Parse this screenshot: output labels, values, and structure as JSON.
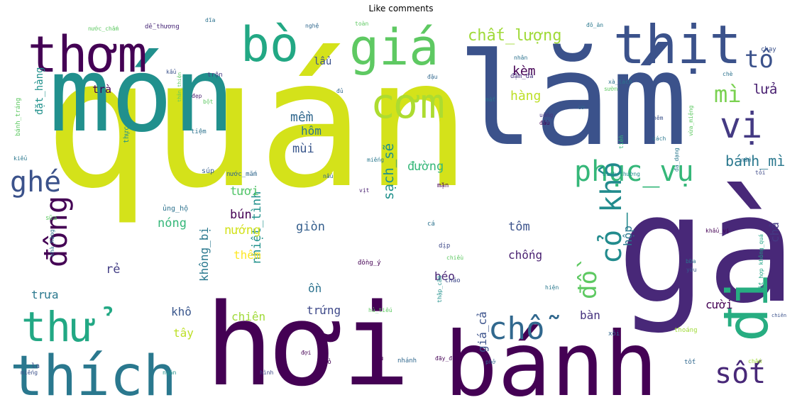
{
  "title": "Like comments",
  "words": [
    {
      "text": "quán",
      "color": "#d4e21a"
    },
    {
      "text": "món",
      "color": "#21908d"
    },
    {
      "text": "lắm",
      "color": "#3b528b"
    },
    {
      "text": "gà",
      "color": "#482878"
    },
    {
      "text": "hơi",
      "color": "#440154"
    },
    {
      "text": "bánh",
      "color": "#440154"
    },
    {
      "text": "thích",
      "color": "#2a788e"
    },
    {
      "text": "thịt",
      "color": "#3b528b"
    },
    {
      "text": "giá",
      "color": "#5ec962"
    },
    {
      "text": "thơm",
      "color": "#440154"
    },
    {
      "text": "bò",
      "color": "#22a884"
    },
    {
      "text": "cơm",
      "color": "#addc30"
    },
    {
      "text": "thử",
      "color": "#22a884"
    },
    {
      "text": "đi",
      "color": "#27ad81"
    },
    {
      "text": "chỗ",
      "color": "#31688e"
    },
    {
      "text": "phục_vụ",
      "color": "#35b779"
    },
    {
      "text": "vị",
      "color": "#443a83"
    },
    {
      "text": "cỏ_khô",
      "color": "#228b8d"
    },
    {
      "text": "đông",
      "color": "#440154"
    },
    {
      "text": "ghé",
      "color": "#3b528b"
    },
    {
      "text": "sốt",
      "color": "#482878"
    },
    {
      "text": "tô",
      "color": "#3b528b"
    },
    {
      "text": "mì",
      "color": "#7ad151"
    },
    {
      "text": "đồ",
      "color": "#5ec962"
    },
    {
      "text": "chất_lượng",
      "color": "#a0da39"
    },
    {
      "text": "sạch_sẽ",
      "color": "#21918c"
    },
    {
      "text": "bánh_mì",
      "color": "#2a788e"
    },
    {
      "text": "lửa",
      "color": "#481f70"
    },
    {
      "text": "kèm",
      "color": "#440154"
    },
    {
      "text": "hàng",
      "color": "#bddf26"
    },
    {
      "text": "nhiệt_tình",
      "color": "#21918c"
    },
    {
      "text": "mềm",
      "color": "#31688e"
    },
    {
      "text": "đường",
      "color": "#35b779"
    },
    {
      "text": "mùi",
      "color": "#39568c"
    },
    {
      "text": "hôm",
      "color": "#2c728e"
    },
    {
      "text": "bún",
      "color": "#440154"
    },
    {
      "text": "tươi",
      "color": "#52c569"
    },
    {
      "text": "nướng",
      "color": "#d2e21b"
    },
    {
      "text": "giòn",
      "color": "#355f8d"
    },
    {
      "text": "nóng",
      "color": "#35b779"
    },
    {
      "text": "không_bị",
      "color": "#2a788e"
    },
    {
      "text": "chống",
      "color": "#481f70"
    },
    {
      "text": "tôm",
      "color": "#3b528b"
    },
    {
      "text": "hộp",
      "color": "#2a788e"
    },
    {
      "text": "thêm",
      "color": "#fde725"
    },
    {
      "text": "rẻ",
      "color": "#433e85"
    },
    {
      "text": "béo",
      "color": "#482475"
    },
    {
      "text": "ồn",
      "color": "#2c728e"
    },
    {
      "text": "trưa",
      "color": "#2a788e"
    },
    {
      "text": "khô",
      "color": "#39568c"
    },
    {
      "text": "chiên",
      "color": "#a0da39"
    },
    {
      "text": "trứng",
      "color": "#3e4989"
    },
    {
      "text": "giá_cả",
      "color": "#3b528b"
    },
    {
      "text": "tây",
      "color": "#bddf26"
    },
    {
      "text": "bàn",
      "color": "#46337e"
    },
    {
      "text": "cười",
      "color": "#440154"
    },
    {
      "text": "chả",
      "color": "#443983"
    },
    {
      "text": "đặt_hàng",
      "color": "#21918c"
    },
    {
      "text": "lẩu",
      "color": "#3b528b"
    },
    {
      "text": "trà",
      "color": "#440154"
    },
    {
      "text": "thực_đơn",
      "color": "#21918c"
    },
    {
      "text": "ủng_hộ",
      "color": "#2c728e"
    },
    {
      "text": "súp",
      "color": "#355f8d"
    },
    {
      "text": "nước_mắm",
      "color": "#31688e"
    },
    {
      "text": "đậm_đà",
      "color": "#46337e"
    },
    {
      "text": "dễ_thương",
      "color": "#482878"
    },
    {
      "text": "nước_chấm",
      "color": "#5ec962"
    },
    {
      "text": "đô_ăn",
      "color": "#2a788e"
    },
    {
      "text": "chạy",
      "color": "#3b528b"
    },
    {
      "text": "trộn",
      "color": "#443983"
    },
    {
      "text": "kết_hợp không_quá",
      "color": "#20a486"
    },
    {
      "text": "hiện",
      "color": "#2a788e"
    },
    {
      "text": "yêu",
      "color": "#38588c"
    },
    {
      "text": "cá",
      "color": "#2c728e"
    },
    {
      "text": "tiệm",
      "color": "#2c728e"
    },
    {
      "text": "chấm",
      "color": "#a0da39"
    },
    {
      "text": "phở",
      "color": "#31688e"
    },
    {
      "text": "chủ",
      "color": "#440154"
    },
    {
      "text": "vỏ",
      "color": "#440154"
    },
    {
      "text": "nhánh",
      "color": "#31688e"
    },
    {
      "text": "ngán",
      "color": "#21918c"
    },
    {
      "text": "tốt",
      "color": "#31688e"
    },
    {
      "text": "hình",
      "color": "#3e4989"
    },
    {
      "text": "đợi",
      "color": "#440154"
    },
    {
      "text": "thoáng",
      "color": "#a0da39"
    },
    {
      "text": "xôi",
      "color": "#31688e"
    },
    {
      "text": "bánh_tráng",
      "color": "#5ec962"
    },
    {
      "text": "kiểu",
      "color": "#2a788e"
    },
    {
      "text": "sữa",
      "color": "#5ec962"
    },
    {
      "text": "nhà_hàng",
      "color": "#2c728e"
    },
    {
      "text": "nấm",
      "color": "#2c728e"
    },
    {
      "text": "tỏi",
      "color": "#3e4989"
    },
    {
      "text": "đủ",
      "color": "#31688e"
    },
    {
      "text": "đầu",
      "color": "#440154"
    },
    {
      "text": "mặn",
      "color": "#440154"
    },
    {
      "text": "cơ",
      "color": "#31688e"
    },
    {
      "text": "vịt",
      "color": "#481f70"
    },
    {
      "text": "tiền",
      "color": "#35b779"
    },
    {
      "text": "cách",
      "color": "#2a788e"
    },
    {
      "text": "bột",
      "color": "#5ec962"
    },
    {
      "text": "đẹp",
      "color": "#481f70"
    },
    {
      "text": "đa_dạng",
      "color": "#2a788e"
    },
    {
      "text": "vừa_miệng",
      "color": "#5ec962"
    },
    {
      "text": "bình_thường",
      "color": "#21918c"
    },
    {
      "text": "nghệ",
      "color": "#31688e"
    },
    {
      "text": "miếng",
      "color": "#2a788e"
    },
    {
      "text": "đồng_ý",
      "color": "#440154"
    },
    {
      "text": "cháo",
      "color": "#3e4989"
    },
    {
      "text": "chiều",
      "color": "#5ec962"
    },
    {
      "text": "dịp",
      "color": "#3e4989"
    },
    {
      "text": "khẩu_vị",
      "color": "#440154"
    },
    {
      "text": "hủ_tiếu",
      "color": "#5ec962"
    },
    {
      "text": "thập_cẩm",
      "color": "#21918c"
    },
    {
      "text": "xà_lách",
      "color": "#2c728e"
    },
    {
      "text": "sườn",
      "color": "#5ec962"
    },
    {
      "text": "đậu",
      "color": "#31688e"
    },
    {
      "text": "toàn",
      "color": "#5ec962"
    },
    {
      "text": "đãy_đủ",
      "color": "#440154"
    },
    {
      "text": "chè",
      "color": "#2c728e"
    },
    {
      "text": "nhân",
      "color": "#2c728e"
    },
    {
      "text": "cực",
      "color": "#440154"
    },
    {
      "text": "kẩu",
      "color": "#3b528b"
    },
    {
      "text": "bữa",
      "color": "#2c728e"
    },
    {
      "text": "mắt",
      "color": "#2c728e"
    },
    {
      "text": "nấu",
      "color": "#31688e"
    },
    {
      "text": "uống",
      "color": "#46337e"
    },
    {
      "text": "thân_thiện",
      "color": "#5ec962"
    },
    {
      "text": "chiên",
      "color": "#3b528b"
    },
    {
      "text": "la",
      "color": "#3b528b"
    },
    {
      "text": "miếng",
      "color": "#3b528b"
    },
    {
      "text": "nêm",
      "color": "#3b528b"
    },
    {
      "text": "dĩa",
      "color": "#2c728e"
    },
    {
      "text": "Like comments",
      "color": "#ffffff"
    }
  ]
}
